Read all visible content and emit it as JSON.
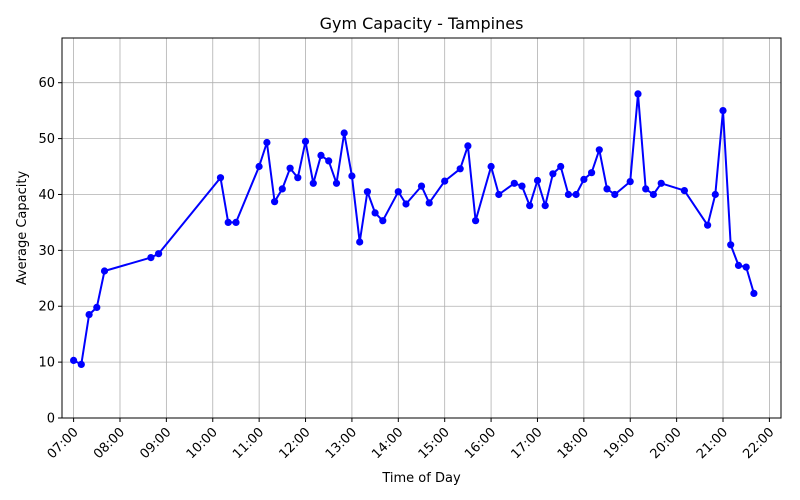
{
  "chart_data": {
    "type": "line",
    "title": "Gym Capacity - Tampines",
    "xlabel": "Time of Day",
    "ylabel": "Average Capacity",
    "xlim": [
      "06:45",
      "22:15"
    ],
    "ylim": [
      0,
      68
    ],
    "x_ticks": [
      "07:00",
      "08:00",
      "09:00",
      "10:00",
      "11:00",
      "12:00",
      "13:00",
      "14:00",
      "15:00",
      "16:00",
      "17:00",
      "18:00",
      "19:00",
      "20:00",
      "21:00",
      "22:00"
    ],
    "y_ticks": [
      0,
      10,
      20,
      30,
      40,
      50,
      60
    ],
    "grid": true,
    "line_color": "#0000ff",
    "series": [
      {
        "x": [
          "07:00",
          "07:10",
          "07:20",
          "07:30",
          "07:40",
          "08:40",
          "08:50",
          "10:10",
          "10:20",
          "10:30",
          "11:00",
          "11:10",
          "11:20",
          "11:30",
          "11:40",
          "11:50",
          "12:00",
          "12:10",
          "12:20",
          "12:30",
          "12:40",
          "12:50",
          "13:00",
          "13:10",
          "13:20",
          "13:30",
          "13:40",
          "14:00",
          "14:10",
          "14:30",
          "14:40",
          "15:00",
          "15:20",
          "15:30",
          "15:40",
          "16:00",
          "16:10",
          "16:30",
          "16:40",
          "16:50",
          "17:00",
          "17:10",
          "17:20",
          "17:30",
          "17:40",
          "17:50",
          "18:00",
          "18:10",
          "18:20",
          "18:30",
          "18:40",
          "19:00",
          "19:10",
          "19:20",
          "19:30",
          "19:40",
          "20:10",
          "20:40",
          "20:50",
          "21:00",
          "21:10",
          "21:20",
          "21:30",
          "21:40"
        ],
        "y": [
          10.3,
          9.6,
          18.5,
          19.8,
          26.3,
          28.7,
          29.4,
          43.0,
          35.0,
          35.0,
          45.0,
          49.3,
          38.7,
          41.0,
          44.7,
          43.0,
          49.5,
          42.0,
          47.0,
          46.0,
          42.0,
          51.0,
          43.3,
          31.5,
          40.5,
          36.7,
          35.3,
          40.5,
          38.3,
          41.5,
          38.5,
          42.4,
          44.6,
          48.7,
          35.3,
          45.0,
          40.0,
          42.0,
          41.5,
          38.0,
          42.5,
          38.0,
          43.7,
          45.0,
          40.0,
          40.0,
          42.7,
          43.9,
          48.0,
          41.0,
          40.0,
          42.3,
          58.0,
          41.0,
          40.0,
          42.0,
          40.7,
          34.5,
          40.0,
          55.0,
          31.0,
          27.3,
          27.0,
          22.3
        ]
      }
    ]
  }
}
